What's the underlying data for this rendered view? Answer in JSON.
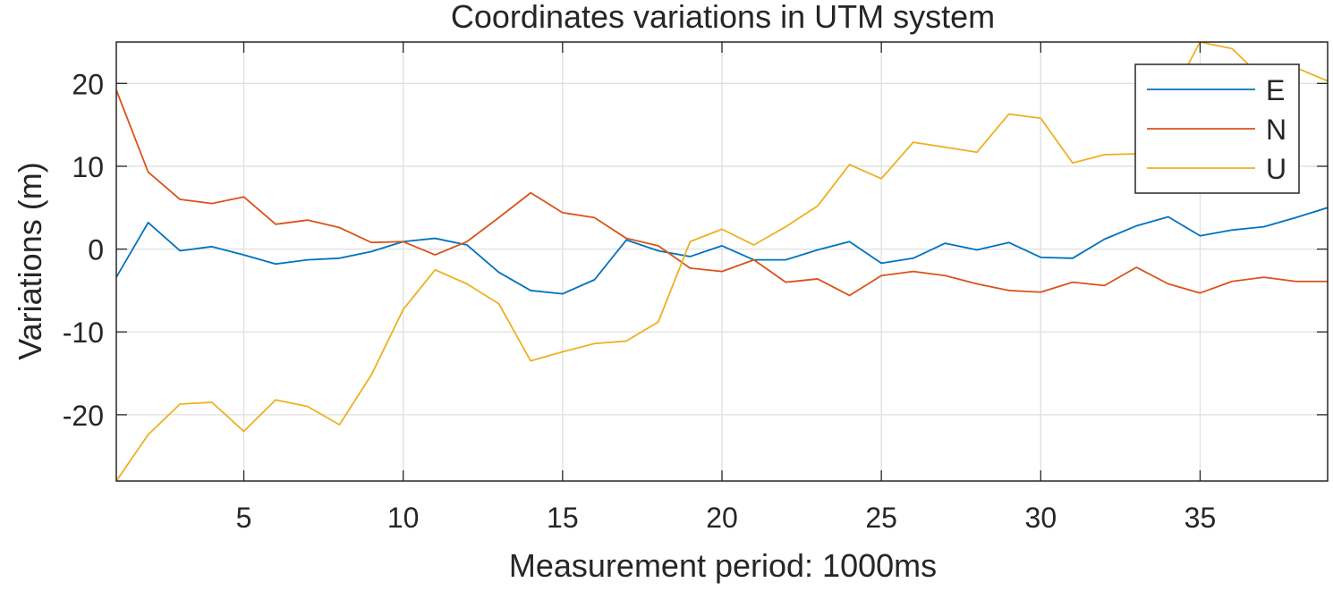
{
  "chart_data": {
    "type": "line",
    "title": "Coordinates variations in UTM system",
    "xlabel": "Measurement period: 1000ms",
    "ylabel": "Variations (m)",
    "xlim": [
      1,
      39
    ],
    "ylim": [
      -28,
      25
    ],
    "xticks": [
      5,
      10,
      15,
      20,
      25,
      30,
      35
    ],
    "yticks": [
      -20,
      -10,
      0,
      10,
      20
    ],
    "grid": true,
    "legend_position": "top-right",
    "x": [
      1,
      2,
      3,
      4,
      5,
      6,
      7,
      8,
      9,
      10,
      11,
      12,
      13,
      14,
      15,
      16,
      17,
      18,
      19,
      20,
      21,
      22,
      23,
      24,
      25,
      26,
      27,
      28,
      29,
      30,
      31,
      32,
      33,
      34,
      35,
      36,
      37,
      38,
      39
    ],
    "series": [
      {
        "name": "E",
        "color": "#0072BD",
        "values": [
          -3.4,
          3.2,
          -0.2,
          0.3,
          -0.7,
          -1.8,
          -1.3,
          -1.1,
          -0.3,
          0.9,
          1.3,
          0.5,
          -2.8,
          -5.0,
          -5.4,
          -3.7,
          1.1,
          -0.2,
          -0.9,
          0.4,
          -1.3,
          -1.3,
          -0.1,
          0.9,
          -1.7,
          -1.1,
          0.7,
          -0.1,
          0.8,
          -1.0,
          -1.1,
          1.2,
          2.8,
          3.9,
          1.6,
          2.3,
          2.7,
          3.8,
          5.0
        ]
      },
      {
        "name": "N",
        "color": "#D95319",
        "values": [
          19.2,
          9.3,
          6.0,
          5.5,
          6.3,
          3.0,
          3.5,
          2.6,
          0.8,
          0.9,
          -0.7,
          0.9,
          3.8,
          6.8,
          4.4,
          3.8,
          1.3,
          0.4,
          -2.3,
          -2.7,
          -1.3,
          -4.0,
          -3.6,
          -5.6,
          -3.2,
          -2.7,
          -3.2,
          -4.2,
          -5.0,
          -5.2,
          -4.0,
          -4.4,
          -2.2,
          -4.2,
          -5.3,
          -3.9,
          -3.4,
          -3.9,
          -3.9
        ]
      },
      {
        "name": "U",
        "color": "#EDB120",
        "values": [
          -28.0,
          -22.4,
          -18.7,
          -18.5,
          -22.0,
          -18.2,
          -19.0,
          -21.2,
          -15.2,
          -7.3,
          -2.5,
          -4.2,
          -6.6,
          -13.5,
          -12.4,
          -11.4,
          -11.1,
          -8.8,
          0.9,
          2.4,
          0.5,
          2.7,
          5.2,
          10.2,
          8.5,
          12.9,
          12.3,
          11.7,
          16.3,
          15.8,
          10.4,
          11.4,
          11.5,
          17.8,
          25.0,
          24.2,
          20.5,
          21.9,
          20.3
        ]
      }
    ]
  }
}
